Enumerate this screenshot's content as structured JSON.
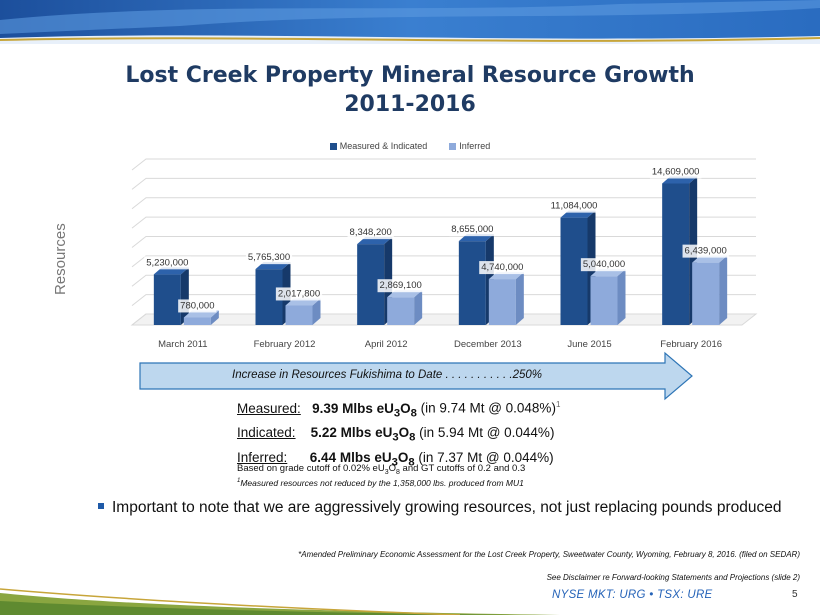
{
  "slide": {
    "title_line1": "Lost Creek Property Mineral Resource Growth",
    "title_line2": "2011-2016",
    "y_axis_label": "Resources",
    "arrow_text": "Increase in Resources Fukishima to Date . . . . . . . . . . .250%",
    "stats": [
      {
        "label": "Measured:",
        "value": "9.39 Mlbs eU",
        "detail": "(in 9.74 Mt @ 0.048%)",
        "sup": "1"
      },
      {
        "label": "Indicated:",
        "value": "5.22 Mlbs eU",
        "detail": "(in 5.94 Mt @ 0.044%)",
        "sup": ""
      },
      {
        "label": "Inferred:",
        "value": "6.44 Mlbs eU",
        "detail": "(in 7.37 Mt @ 0.044%)",
        "sup": ""
      }
    ],
    "note_grade": "Based on grade cutoff of 0.02% eU",
    "note_grade_tail": " and GT cutoffs of 0.2 and 0.3",
    "note_measured": "Measured resources not reduced by the 1,358,000 lbs. produced from MU1",
    "note_measured_sup": "1",
    "bullet": "Important to note that we are aggressively growing resources, not just replacing pounds produced",
    "footnote1": "*Amended Preliminary Economic Assessment for the Lost Creek Property, Sweetwater County, Wyoming, February 8, 2016. (filed on SEDAR)",
    "footnote2": "See Disclaimer re Forward-looking Statements and Projections (slide 2)",
    "ticker": "NYSE MKT: URG • TSX: URE",
    "page_number": "5",
    "formula_subs": {
      "u": "3",
      "o": "8"
    }
  },
  "colors": {
    "title": "#1f3b63",
    "measured_indicated": "#1f4e8c",
    "inferred": "#8eaadb",
    "ticker": "#2563b8",
    "arrow_fill": "#bdd7ee",
    "arrow_stroke": "#2e75b6"
  },
  "chart_data": {
    "type": "bar",
    "categories": [
      "March 2011",
      "February 2012",
      "April 2012",
      "December 2013",
      "June 2015",
      "February 2016"
    ],
    "series": [
      {
        "name": "Measured & Indicated",
        "values": [
          5230000,
          5765300,
          8348200,
          8655000,
          11084000,
          14609000
        ],
        "labels": [
          "5,230,000",
          "5,765,300",
          "8,348,200",
          "8,655,000",
          "11,084,000",
          "14,609,000"
        ]
      },
      {
        "name": "Inferred",
        "values": [
          780000,
          2017800,
          2869100,
          4740000,
          5040000,
          6439000
        ],
        "labels": [
          "780,000",
          "2,017,800",
          "2,869,100",
          "4,740,000",
          "5,040,000",
          "6,439,000"
        ]
      }
    ],
    "ylabel": "Resources",
    "ylim": [
      0,
      16000000
    ],
    "grid": true,
    "legend": "top-center",
    "style": "3d-clustered-column"
  }
}
